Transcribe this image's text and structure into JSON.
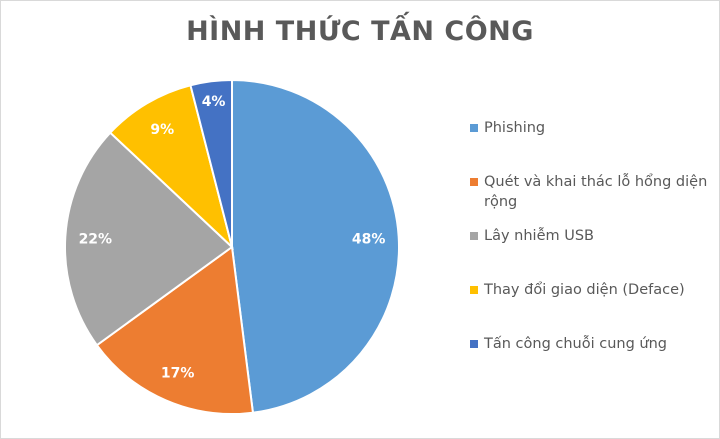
{
  "chart_data": {
    "type": "pie",
    "title": "HÌNH THỨC TẤN CÔNG",
    "categories": [
      "Phishing",
      "Quét và khai thác lỗ hổng diện rộng",
      "Lây nhiễm USB",
      "Thay đổi giao diện (Deface)",
      "Tấn công chuỗi cung ứng"
    ],
    "values": [
      48,
      17,
      22,
      9,
      4
    ],
    "labels": [
      "48%",
      "17%",
      "22%",
      "9%",
      "4%"
    ],
    "colors": [
      "#5b9bd5",
      "#ed7d31",
      "#a5a5a5",
      "#ffc000",
      "#4472c4"
    ],
    "start_angle": "top, clockwise",
    "legend_position": "right"
  }
}
